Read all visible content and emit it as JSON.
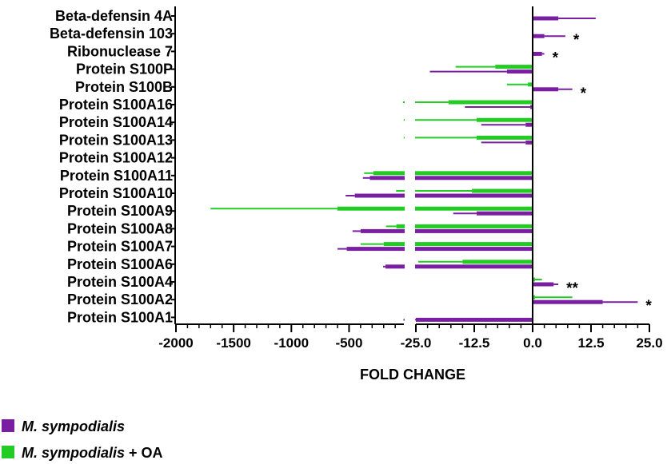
{
  "chart_data": {
    "type": "bar",
    "orientation": "horizontal",
    "xlabel": "FOLD CHANGE",
    "categories": [
      "Beta-defensin 4A",
      "Beta-defensin 103",
      "Ribonuclease 7",
      "Protein S100P",
      "Protein S100B",
      "Protein S100A16",
      "Protein S100A14",
      "Protein S100A13",
      "Protein S100A12",
      "Protein S100A11",
      "Protein S100A10",
      "Protein S100A9",
      "Protein S100A8",
      "Protein S100A7",
      "Protein S100A6",
      "Protein S100A4",
      "Protein S100A2",
      "Protein S100A1"
    ],
    "x_axis": {
      "broken": true,
      "segment_left": {
        "range": [
          -2000,
          -25
        ],
        "ticks": [
          -2000,
          -1500,
          -1000,
          -500,
          -25
        ],
        "tick_labels": [
          "-2000",
          "-1500",
          "-1000",
          "-500",
          ""
        ]
      },
      "segment_right": {
        "range": [
          -25,
          25
        ],
        "ticks": [
          -25,
          -12.5,
          0,
          12.5,
          25
        ],
        "tick_labels": [
          "-25.0",
          "-12.5",
          "0.0",
          "12.5",
          "25.0"
        ]
      }
    },
    "series": [
      {
        "name": "M. sympodialis",
        "color": "#7a1fa2",
        "values": [
          5.5,
          2.5,
          2.0,
          -5.5,
          5.5,
          -0.5,
          -1.5,
          -1.5,
          null,
          -320,
          -450,
          -12,
          -400,
          -520,
          -185,
          4.5,
          15.0,
          -25
        ],
        "errors": [
          8.0,
          4.5,
          0.5,
          16.5,
          3.0,
          14.0,
          9.5,
          9.5,
          null,
          60,
          80,
          5,
          70,
          80,
          20,
          1.0,
          7.5,
          4.0
        ]
      },
      {
        "name": "M. sympodialis + OA",
        "color": "#22cc22",
        "values": [
          null,
          null,
          null,
          -8.0,
          -1.0,
          -18,
          -12,
          -12,
          null,
          -290,
          -13.0,
          -600,
          -90,
          -200,
          -15.0,
          0.5,
          0.5,
          null
        ],
        "errors": [
          null,
          null,
          null,
          8.5,
          4.5,
          15,
          15,
          15,
          null,
          80,
          80,
          1100,
          90,
          200,
          9.5,
          1.5,
          8.0,
          null
        ]
      }
    ],
    "annotations": [
      {
        "category": "Beta-defensin 103",
        "text": "*"
      },
      {
        "category": "Ribonuclease 7",
        "text": "*"
      },
      {
        "category": "Protein S100B",
        "text": "*"
      },
      {
        "category": "Protein S100A4",
        "text": "**"
      },
      {
        "category": "Protein S100A2",
        "text": "*"
      }
    ],
    "legend": {
      "placement": "bottom-left"
    }
  },
  "legend": {
    "item1": {
      "italic": "M. sympodialis",
      "rest": ""
    },
    "item2": {
      "italic": "M. sympodialis",
      "rest": " + OA"
    }
  }
}
